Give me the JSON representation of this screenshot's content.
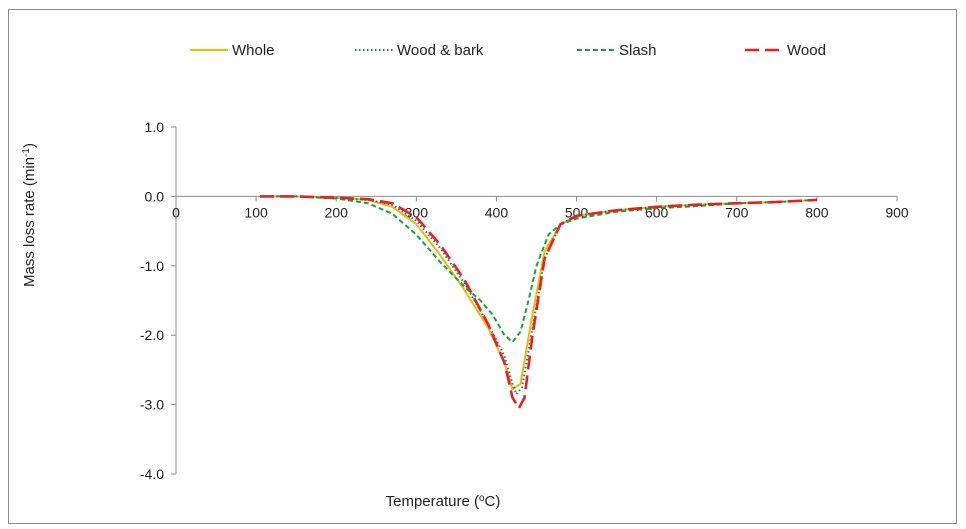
{
  "chart_data": {
    "type": "line",
    "xlabel": "Temperature (",
    "xlabel_sup": "o",
    "xlabel_end": "C)",
    "ylabel": "Mass loss rate (min",
    "ylabel_sup": "-1",
    "ylabel_end": ")",
    "xlim": [
      0,
      900
    ],
    "ylim": [
      -4.0,
      1.0
    ],
    "xticks": [
      0,
      100,
      200,
      300,
      400,
      500,
      600,
      700,
      800,
      900
    ],
    "xtick_labels": [
      "0",
      "100",
      "200",
      "300",
      "400",
      "500",
      "600",
      "700",
      "800",
      "900"
    ],
    "yticks": [
      1.0,
      0.0,
      -1.0,
      -2.0,
      -3.0,
      -4.0
    ],
    "ytick_labels": [
      "1.0",
      "0.0",
      "-1.0",
      "-2.0",
      "-3.0",
      "-4.0"
    ],
    "grid": false,
    "legend_position": "top",
    "series": [
      {
        "name": "Whole",
        "color": "#f5b700",
        "dash": "solid",
        "x": [
          105,
          150,
          200,
          240,
          270,
          300,
          330,
          360,
          390,
          410,
          420,
          430,
          445,
          460,
          480,
          500,
          550,
          600,
          650,
          700,
          750,
          800
        ],
        "y": [
          0.0,
          0.0,
          -0.02,
          -0.05,
          -0.15,
          -0.4,
          -0.85,
          -1.35,
          -1.9,
          -2.4,
          -2.78,
          -2.7,
          -1.7,
          -0.8,
          -0.4,
          -0.28,
          -0.2,
          -0.15,
          -0.12,
          -0.1,
          -0.08,
          -0.05
        ]
      },
      {
        "name": "Wood & bark",
        "color": "#1f6fb5",
        "dash": "dotted",
        "x": [
          105,
          150,
          200,
          240,
          270,
          300,
          330,
          360,
          390,
          410,
          420,
          425,
          432,
          445,
          460,
          480,
          500,
          550,
          600,
          650,
          700,
          750,
          800
        ],
        "y": [
          0.0,
          0.0,
          -0.02,
          -0.05,
          -0.12,
          -0.35,
          -0.75,
          -1.25,
          -1.85,
          -2.3,
          -2.7,
          -2.85,
          -2.75,
          -1.9,
          -0.9,
          -0.4,
          -0.28,
          -0.2,
          -0.15,
          -0.12,
          -0.1,
          -0.08,
          -0.05
        ]
      },
      {
        "name": "Slash",
        "color": "#1aa33a",
        "dash": "dashed",
        "x": [
          105,
          150,
          200,
          240,
          270,
          300,
          330,
          360,
          380,
          395,
          410,
          420,
          430,
          440,
          450,
          465,
          480,
          500,
          550,
          600,
          650,
          700,
          750,
          800
        ],
        "y": [
          0.0,
          0.0,
          -0.03,
          -0.1,
          -0.25,
          -0.55,
          -0.95,
          -1.3,
          -1.5,
          -1.7,
          -2.0,
          -2.1,
          -1.95,
          -1.5,
          -1.0,
          -0.55,
          -0.4,
          -0.32,
          -0.22,
          -0.17,
          -0.14,
          -0.1,
          -0.08,
          -0.05
        ]
      },
      {
        "name": "Wood",
        "color": "#e52222",
        "dash": "longdash",
        "x": [
          105,
          150,
          200,
          240,
          270,
          300,
          330,
          360,
          390,
          410,
          420,
          428,
          435,
          445,
          460,
          480,
          500,
          550,
          600,
          650,
          700,
          750,
          800
        ],
        "y": [
          0.0,
          0.0,
          -0.02,
          -0.04,
          -0.1,
          -0.3,
          -0.7,
          -1.2,
          -1.85,
          -2.4,
          -2.9,
          -3.05,
          -2.9,
          -2.0,
          -0.9,
          -0.4,
          -0.28,
          -0.2,
          -0.15,
          -0.12,
          -0.1,
          -0.08,
          -0.05
        ]
      }
    ]
  }
}
